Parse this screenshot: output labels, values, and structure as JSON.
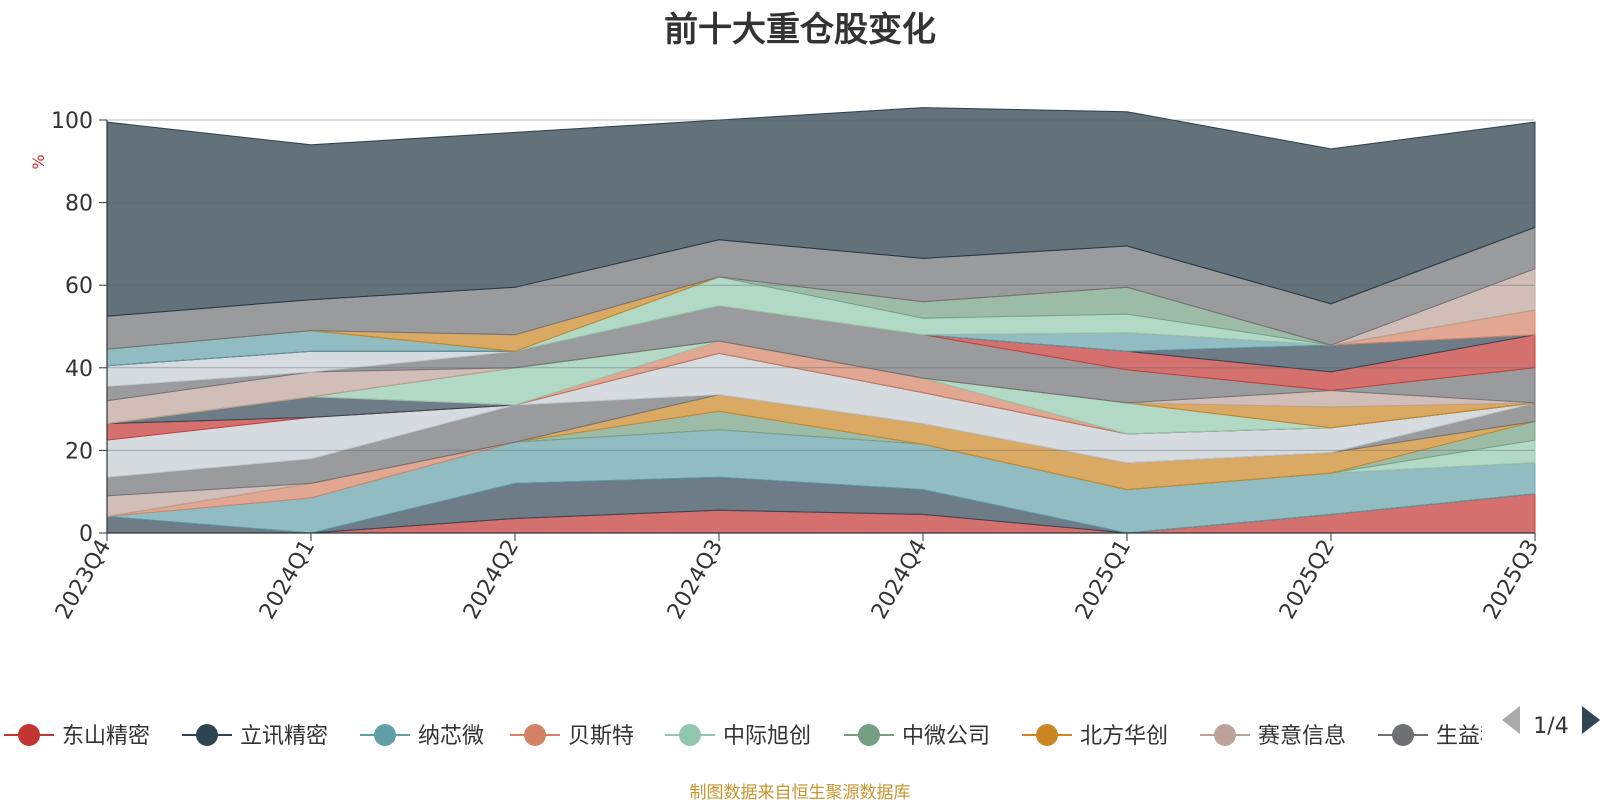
{
  "chart_data": {
    "type": "area",
    "title": "前十大重仓股变化",
    "ylabel": "%",
    "ylim": [
      0,
      100
    ],
    "yticks": [
      0,
      20,
      40,
      60,
      80,
      100
    ],
    "grid": true,
    "categories": [
      "2023Q4",
      "2024Q1",
      "2024Q2",
      "2024Q3",
      "2024Q4",
      "2025Q1",
      "2025Q2",
      "2025Q3"
    ],
    "series": [
      {
        "name": "东山精密",
        "color": "#c23531",
        "values": [
          0.0,
          0.0,
          3.5,
          5.5,
          4.5,
          0.0,
          4.5,
          9.5
        ]
      },
      {
        "name": "立讯精密",
        "color": "#2f4554",
        "values": [
          4.0,
          0.0,
          8.5,
          8.0,
          6.0,
          0.0,
          0.0,
          0.0
        ]
      },
      {
        "name": "纳芯微",
        "color": "#61a0a8",
        "values": [
          0.0,
          8.5,
          10.0,
          11.5,
          11.0,
          10.5,
          10.0,
          7.5
        ]
      },
      {
        "name": "贝斯特",
        "color": "#d48265",
        "values": [
          0.0,
          3.5,
          0.0,
          0.0,
          0.0,
          0.0,
          0.0,
          0.0
        ]
      },
      {
        "name": "中际旭创",
        "color": "#91c7ae",
        "values": [
          0.0,
          0.0,
          0.0,
          0.0,
          0.0,
          0.0,
          0.0,
          5.5
        ]
      },
      {
        "name": "中微公司",
        "color": "#749f83",
        "values": [
          0.0,
          0.0,
          0.0,
          4.5,
          0.0,
          0.0,
          0.0,
          4.5
        ]
      },
      {
        "name": "北方华创",
        "color": "#ca8622",
        "values": [
          0.0,
          0.0,
          0.0,
          4.0,
          5.0,
          6.5,
          5.0,
          0.0
        ]
      },
      {
        "name": "赛意信息",
        "color": "#bda29a",
        "values": [
          5.0,
          0.0,
          0.0,
          0.0,
          0.0,
          0.0,
          0.0,
          0.0
        ]
      },
      {
        "name": "生益科技",
        "color": "#6e7074",
        "values": [
          4.5,
          6.0,
          9.0,
          0.0,
          0.0,
          0.0,
          0.0,
          4.5
        ]
      },
      {
        "name": "",
        "color": "#c4ccd3",
        "values": [
          9.0,
          10.0,
          0.0,
          10.0,
          7.5,
          7.0,
          6.0,
          0.0
        ]
      },
      {
        "name": "",
        "color": "#c23531",
        "values": [
          4.0,
          0.0,
          0.0,
          0.0,
          0.0,
          0.0,
          0.0,
          0.0
        ]
      },
      {
        "name": "",
        "color": "#2f4554",
        "values": [
          0.0,
          5.0,
          0.0,
          0.0,
          0.0,
          0.0,
          0.0,
          0.0
        ]
      },
      {
        "name": "",
        "color": "#d48265",
        "values": [
          0.0,
          0.0,
          0.0,
          3.0,
          3.5,
          0.0,
          0.0,
          0.0
        ]
      },
      {
        "name": "",
        "color": "#91c7ae",
        "values": [
          0.0,
          0.0,
          9.0,
          0.0,
          0.0,
          7.5,
          0.0,
          0.0
        ]
      },
      {
        "name": "",
        "color": "#749f83",
        "values": [
          0.0,
          0.0,
          0.0,
          0.0,
          0.0,
          0.0,
          0.0,
          0.0
        ]
      },
      {
        "name": "",
        "color": "#ca8622",
        "values": [
          0.0,
          0.0,
          0.0,
          0.0,
          0.0,
          0.0,
          5.0,
          0.0
        ]
      },
      {
        "name": "",
        "color": "#bda29a",
        "values": [
          5.5,
          6.0,
          0.0,
          0.0,
          0.0,
          0.0,
          4.0,
          0.0
        ]
      },
      {
        "name": "",
        "color": "#6e7074",
        "values": [
          3.5,
          0.0,
          4.0,
          8.5,
          10.5,
          8.0,
          0.0,
          8.5
        ]
      },
      {
        "name": "",
        "color": "#c4ccd3",
        "values": [
          5.0,
          5.0,
          0.0,
          0.0,
          0.0,
          0.0,
          0.0,
          0.0
        ]
      },
      {
        "name": "",
        "color": "#c23531",
        "values": [
          0.0,
          0.0,
          0.0,
          0.0,
          0.0,
          4.5,
          4.5,
          8.0
        ]
      },
      {
        "name": "",
        "color": "#2f4554",
        "values": [
          0.0,
          0.0,
          0.0,
          0.0,
          0.0,
          0.0,
          6.5,
          0.0
        ]
      },
      {
        "name": "",
        "color": "#61a0a8",
        "values": [
          4.0,
          5.0,
          0.0,
          0.0,
          0.0,
          4.5,
          0.0,
          0.0
        ]
      },
      {
        "name": "",
        "color": "#d48265",
        "values": [
          0.0,
          0.0,
          0.0,
          0.0,
          0.0,
          0.0,
          0.0,
          6.0
        ]
      },
      {
        "name": "",
        "color": "#91c7ae",
        "values": [
          0.0,
          0.0,
          0.0,
          7.0,
          4.0,
          4.5,
          0.0,
          0.0
        ]
      },
      {
        "name": "",
        "color": "#749f83",
        "values": [
          0.0,
          0.0,
          0.0,
          0.0,
          4.0,
          6.5,
          0.0,
          0.0
        ]
      },
      {
        "name": "",
        "color": "#ca8622",
        "values": [
          0.0,
          0.0,
          4.0,
          0.0,
          0.0,
          0.0,
          0.0,
          0.0
        ]
      },
      {
        "name": "",
        "color": "#bda29a",
        "values": [
          0.0,
          0.0,
          0.0,
          0.0,
          0.0,
          0.0,
          0.0,
          10.0
        ]
      },
      {
        "name": "",
        "color": "#6e7074",
        "values": [
          8.0,
          7.5,
          11.5,
          9.0,
          10.5,
          10.0,
          10.0,
          10.0
        ]
      },
      {
        "name": "",
        "color": "#1f3542",
        "values": [
          47.0,
          37.5,
          37.5,
          29.0,
          36.5,
          32.5,
          37.5,
          25.5
        ]
      }
    ],
    "legend": {
      "position": "bottom",
      "page": "1/4"
    },
    "source": "制图数据来自恒生聚源数据库"
  }
}
